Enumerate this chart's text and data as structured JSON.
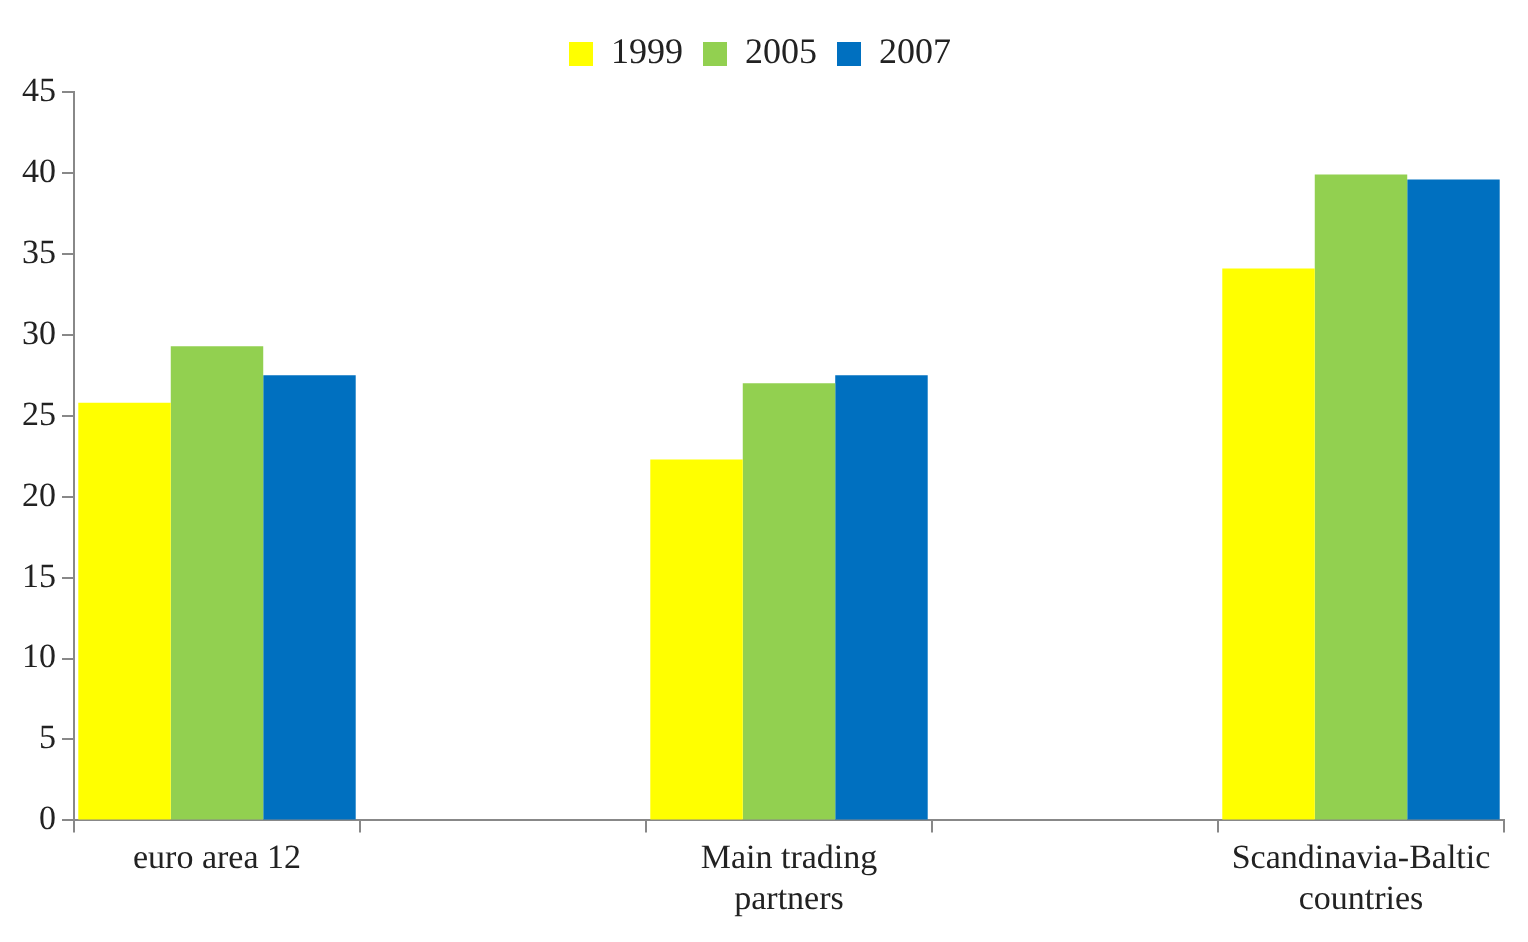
{
  "chart_data": {
    "type": "bar",
    "categories": [
      "euro area 12",
      null,
      "Main trading partners",
      null,
      "Scandinavia-Baltic countries"
    ],
    "series": [
      {
        "name": "1999",
        "color": "#ffff00",
        "values": [
          25.8,
          null,
          22.3,
          null,
          34.1
        ]
      },
      {
        "name": "2005",
        "color": "#92d050",
        "values": [
          29.3,
          null,
          27.0,
          null,
          39.9
        ]
      },
      {
        "name": "2007",
        "color": "#0070c0",
        "values": [
          27.5,
          null,
          27.5,
          null,
          39.6
        ]
      }
    ],
    "ylim": [
      0,
      45
    ],
    "yticks": [
      0,
      5,
      10,
      15,
      20,
      25,
      30,
      35,
      40,
      45
    ],
    "grid": false,
    "legend": "top"
  }
}
